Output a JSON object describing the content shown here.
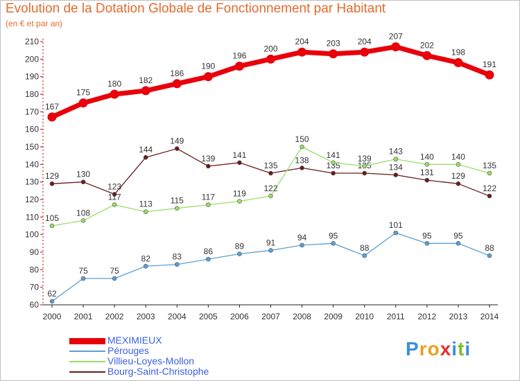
{
  "title": "Evolution de la Dotation Globale de Fonctionnement par Habitant",
  "subtitle": "(en € et par an)",
  "brand": {
    "text": "Proxiti",
    "letters": [
      "P",
      "r",
      "o",
      "x",
      "i",
      "t",
      "i"
    ],
    "colors": [
      "#3b8fd8",
      "#e8a21c",
      "#e8a21c",
      "#e8302c",
      "#3b8fd8",
      "#7bbf2a",
      "#3b8fd8"
    ]
  },
  "chart_data": {
    "type": "line",
    "x": [
      "2000",
      "2001",
      "2002",
      "2003",
      "2004",
      "2005",
      "2006",
      "2007",
      "2008",
      "2009",
      "2010",
      "2011",
      "2012",
      "2013",
      "2014"
    ],
    "ylim": [
      60,
      210
    ],
    "yticks": [
      60,
      70,
      80,
      90,
      100,
      110,
      120,
      130,
      140,
      150,
      160,
      170,
      180,
      190,
      200,
      210
    ],
    "grid": false,
    "series": [
      {
        "name": "MEXIMIEUX",
        "color": "#e8000b",
        "values": [
          167,
          175,
          180,
          182,
          186,
          190,
          196,
          200,
          204,
          203,
          204,
          207,
          202,
          198,
          191
        ]
      },
      {
        "name": "Pérouges",
        "color": "#5a9fd4",
        "values": [
          62,
          75,
          75,
          82,
          83,
          86,
          89,
          91,
          94,
          95,
          88,
          101,
          95,
          95,
          88
        ]
      },
      {
        "name": "Villieu-Loyes-Mollon",
        "color": "#99dd66",
        "values": [
          105,
          108,
          117,
          113,
          115,
          117,
          119,
          122,
          150,
          141,
          139,
          143,
          140,
          140,
          135
        ]
      },
      {
        "name": "Bourg-Saint-Christophe",
        "color": "#6b1a1a",
        "values": [
          129,
          130,
          123,
          144,
          149,
          139,
          141,
          135,
          138,
          135,
          135,
          134,
          131,
          129,
          122
        ]
      }
    ]
  }
}
